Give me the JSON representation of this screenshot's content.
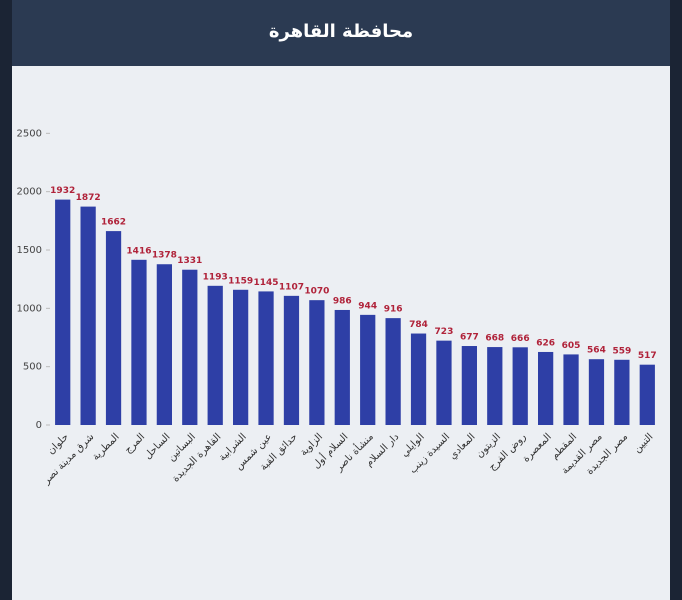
{
  "chart_data": {
    "type": "bar",
    "title": "محافظة القاهرة",
    "categories": [
      "حلوان",
      "شرق مدينة نصر",
      "المطرية",
      "المرج",
      "الساحل",
      "البساتين",
      "القاهرة الجديدة",
      "الشرابية",
      "عين شمس",
      "حدائق القبة",
      "الزاوية",
      "السلام أول",
      "منشأة ناصر",
      "دار السلام",
      "الوايلي",
      "السيدة زينب",
      "المعادي",
      "الزيتون",
      "روض الفرج",
      "المعصرة",
      "المقطم",
      "مصر القديمة",
      "مصر الجديدة",
      "التبين"
    ],
    "values": [
      1932,
      1872,
      1662,
      1416,
      1378,
      1331,
      1193,
      1159,
      1145,
      1107,
      1070,
      986,
      944,
      916,
      784,
      723,
      677,
      668,
      666,
      626,
      605,
      564,
      559,
      517
    ],
    "color": "#2e3fa6",
    "label_color": "#b0233a",
    "ylim": [
      0,
      2700
    ],
    "yticks": [
      0,
      500,
      1000,
      1500,
      2000,
      2500
    ],
    "grid": false
  }
}
